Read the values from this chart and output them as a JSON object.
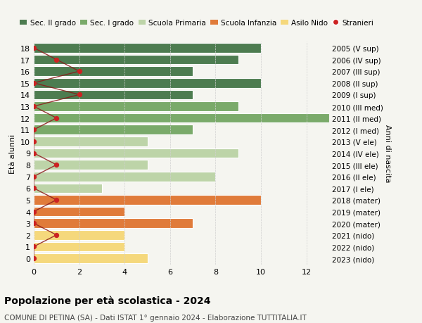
{
  "ages": [
    18,
    17,
    16,
    15,
    14,
    13,
    12,
    11,
    10,
    9,
    8,
    7,
    6,
    5,
    4,
    3,
    2,
    1,
    0
  ],
  "right_labels": [
    "2005 (V sup)",
    "2006 (IV sup)",
    "2007 (III sup)",
    "2008 (II sup)",
    "2009 (I sup)",
    "2010 (III med)",
    "2011 (II med)",
    "2012 (I med)",
    "2013 (V ele)",
    "2014 (IV ele)",
    "2015 (III ele)",
    "2016 (II ele)",
    "2017 (I ele)",
    "2018 (mater)",
    "2019 (mater)",
    "2020 (mater)",
    "2021 (nido)",
    "2022 (nido)",
    "2023 (nido)"
  ],
  "bar_values": [
    10,
    9,
    7,
    10,
    7,
    9,
    13,
    7,
    5,
    9,
    5,
    8,
    3,
    10,
    4,
    7,
    4,
    4,
    5
  ],
  "stranieri_values": [
    0,
    1,
    2,
    0,
    2,
    0,
    1,
    0,
    0,
    0,
    1,
    0,
    0,
    1,
    0,
    0,
    1,
    0,
    0
  ],
  "bar_colors": [
    "#4d7c50",
    "#4d7c50",
    "#4d7c50",
    "#4d7c50",
    "#4d7c50",
    "#7aaa6a",
    "#7aaa6a",
    "#7aaa6a",
    "#bdd4a8",
    "#bdd4a8",
    "#bdd4a8",
    "#bdd4a8",
    "#bdd4a8",
    "#e07b3a",
    "#e07b3a",
    "#e07b3a",
    "#f5d87c",
    "#f5d87c",
    "#f5d87c"
  ],
  "legend_colors": [
    "#4d7c50",
    "#7aaa6a",
    "#bdd4a8",
    "#e07b3a",
    "#f5d87c",
    "#cc2222"
  ],
  "legend_labels": [
    "Sec. II grado",
    "Sec. I grado",
    "Scuola Primaria",
    "Scuola Infanzia",
    "Asilo Nido",
    "Stranieri"
  ],
  "ylabel": "Età alunni",
  "right_ylabel": "Anni di nascita",
  "title": "Popolazione per età scolastica - 2024",
  "subtitle": "COMUNE DI PETINA (SA) - Dati ISTAT 1° gennaio 2024 - Elaborazione TUTTITALIA.IT",
  "xlim": [
    0,
    13
  ],
  "xticks": [
    0,
    2,
    4,
    6,
    8,
    10,
    12
  ],
  "stranieri_color": "#cc2222",
  "stranieri_line_color": "#8b1a1a",
  "background_color": "#f5f5f0",
  "bar_height": 0.82,
  "grid_color": "#d0d0d0"
}
